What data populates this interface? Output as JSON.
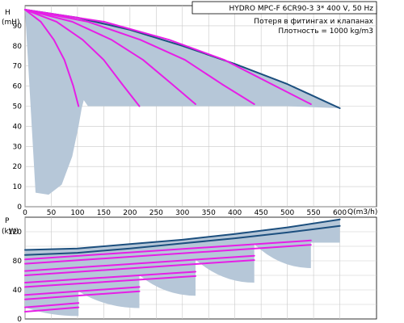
{
  "chart_data": [
    {
      "type": "area",
      "panel": "head",
      "ylabel": "H",
      "yunit": "(mH)",
      "xlabel": "Q(m3/h)",
      "xlim": [
        0,
        670
      ],
      "ylim": [
        0,
        100
      ],
      "xticks": [
        0,
        50,
        100,
        150,
        200,
        250,
        300,
        350,
        400,
        450,
        500,
        550,
        600
      ],
      "yticks": [
        0,
        10,
        20,
        30,
        40,
        50,
        60,
        70,
        80,
        90
      ],
      "grid": true,
      "title_lines": [
        "HYDRO MPC-F 6CR90-3   3* 400 V, 50 Hz"
      ],
      "annotation_lines": [
        "Потеря в фитингах и клапанах",
        "Плотность = 1000 kg/m3"
      ],
      "envelope_top": {
        "x": [
          0,
          100,
          200,
          300,
          400,
          500,
          600
        ],
        "y": [
          98,
          94,
          88,
          80,
          71,
          61,
          49
        ]
      },
      "envelope_bottom": {
        "x": [
          0,
          20,
          45,
          70,
          90,
          102,
          108,
          112,
          120,
          200,
          300,
          400,
          500,
          600
        ],
        "y": [
          98,
          7,
          6,
          11,
          25,
          40,
          49,
          53,
          50,
          50,
          50,
          50,
          50,
          49
        ]
      },
      "series": [
        {
          "x": [
            0,
            30,
            55,
            75,
            92,
            102
          ],
          "y": [
            98,
            92,
            83,
            73,
            60,
            50
          ]
        },
        {
          "x": [
            0,
            60,
            110,
            150,
            185,
            218
          ],
          "y": [
            98,
            92,
            83,
            73,
            61,
            50
          ]
        },
        {
          "x": [
            0,
            90,
            165,
            225,
            280,
            325
          ],
          "y": [
            98,
            92,
            83,
            73,
            61,
            51
          ]
        },
        {
          "x": [
            0,
            120,
            220,
            305,
            375,
            437
          ],
          "y": [
            98,
            92,
            83,
            73,
            61,
            51
          ]
        },
        {
          "x": [
            0,
            150,
            275,
            380,
            470,
            545
          ],
          "y": [
            98,
            92,
            83,
            73,
            61,
            51
          ]
        }
      ]
    },
    {
      "type": "area",
      "panel": "power",
      "ylabel": "P",
      "yunit": "(kW)",
      "xlim": [
        0,
        670
      ],
      "ylim": [
        0,
        140
      ],
      "xticks": [
        0,
        50,
        100,
        150,
        200,
        250,
        300,
        350,
        400,
        450,
        500,
        550,
        600
      ],
      "yticks": [
        0,
        40,
        80,
        120
      ],
      "grid": true,
      "upper_curves": [
        {
          "x": [
            0,
            100,
            200,
            300,
            400,
            500,
            600
          ],
          "y": [
            95,
            97,
            103,
            109,
            117,
            126,
            137
          ]
        },
        {
          "x": [
            0,
            100,
            200,
            300,
            400,
            500,
            600
          ],
          "y": [
            88,
            91,
            97,
            104,
            111,
            119,
            128
          ]
        }
      ],
      "series": [
        {
          "x": [
            0,
            102
          ],
          "y": [
            16,
            22
          ]
        },
        {
          "x": [
            0,
            218
          ],
          "y": [
            33,
            44
          ]
        },
        {
          "x": [
            0,
            325
          ],
          "y": [
            50,
            65
          ]
        },
        {
          "x": [
            0,
            437
          ],
          "y": [
            66,
            87
          ]
        },
        {
          "x": [
            0,
            545
          ],
          "y": [
            82,
            108
          ]
        }
      ],
      "lobe_bottoms": [
        [
          102,
          4
        ],
        [
          218,
          15
        ],
        [
          325,
          32
        ],
        [
          437,
          50
        ],
        [
          545,
          70
        ],
        [
          600,
          105
        ]
      ]
    }
  ]
}
